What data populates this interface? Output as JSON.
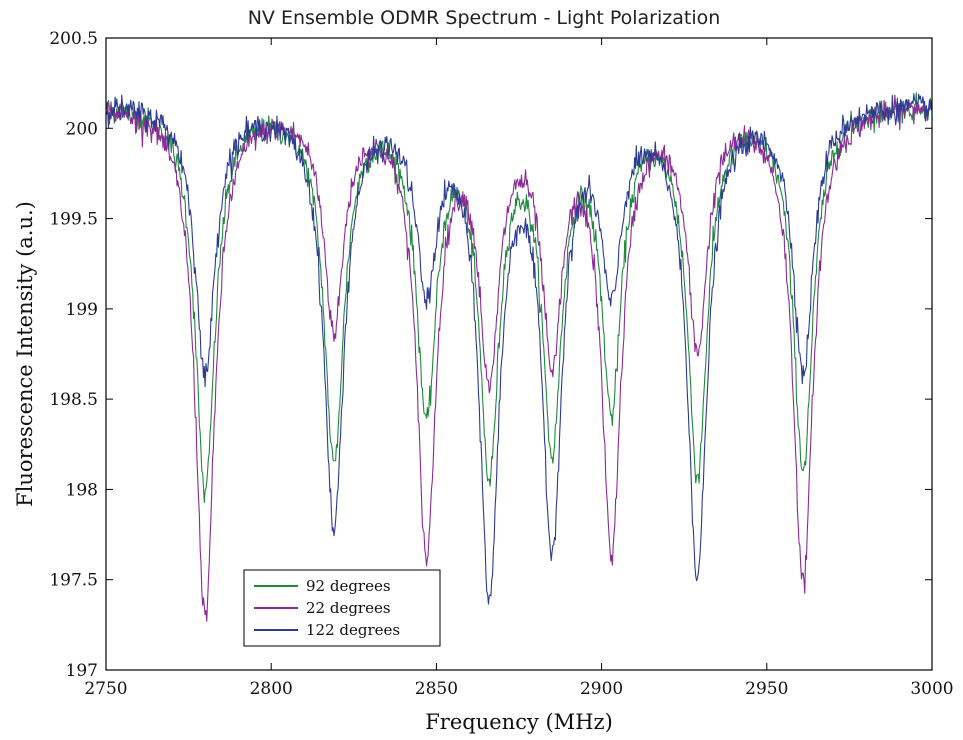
{
  "chart_data": {
    "type": "line",
    "title": "NV Ensemble ODMR Spectrum - Light Polarization",
    "xlabel": "Frequency (MHz)",
    "ylabel": "Fluorescence Intensity (a.u.)",
    "xlim": [
      2750,
      3000
    ],
    "ylim": [
      197,
      200.5
    ],
    "xticks": [
      2750,
      2800,
      2850,
      2900,
      2950,
      3000
    ],
    "xtick_labels": [
      "2750",
      "2800",
      "2850",
      "2900",
      "2950",
      "3000"
    ],
    "yticks": [
      197,
      197.5,
      198,
      198.5,
      199,
      199.5,
      200,
      200.5
    ],
    "ytick_labels": [
      "197",
      "197.5",
      "198",
      "198.5",
      "199",
      "199.5",
      "200",
      "200.5"
    ],
    "grid": false,
    "legend_position": "bottom-left",
    "baseline": 200.15,
    "dip_centers_mhz": [
      780,
      819,
      847,
      866,
      885,
      903,
      929,
      961
    ],
    "series": [
      {
        "name": "92 degrees",
        "color": "#1e8a3c",
        "dip_minima": [
          198.0,
          198.2,
          198.5,
          198.2,
          198.35,
          198.55,
          198.15,
          198.15
        ]
      },
      {
        "name": "22 degrees",
        "color": "#8a2b96",
        "dip_minima": [
          197.32,
          198.95,
          197.72,
          198.72,
          198.82,
          197.75,
          198.85,
          197.5
        ]
      },
      {
        "name": "122 degrees",
        "color": "#2c3a96",
        "dip_minima": [
          198.65,
          197.82,
          199.2,
          197.52,
          197.8,
          199.2,
          197.58,
          198.68
        ]
      }
    ]
  }
}
